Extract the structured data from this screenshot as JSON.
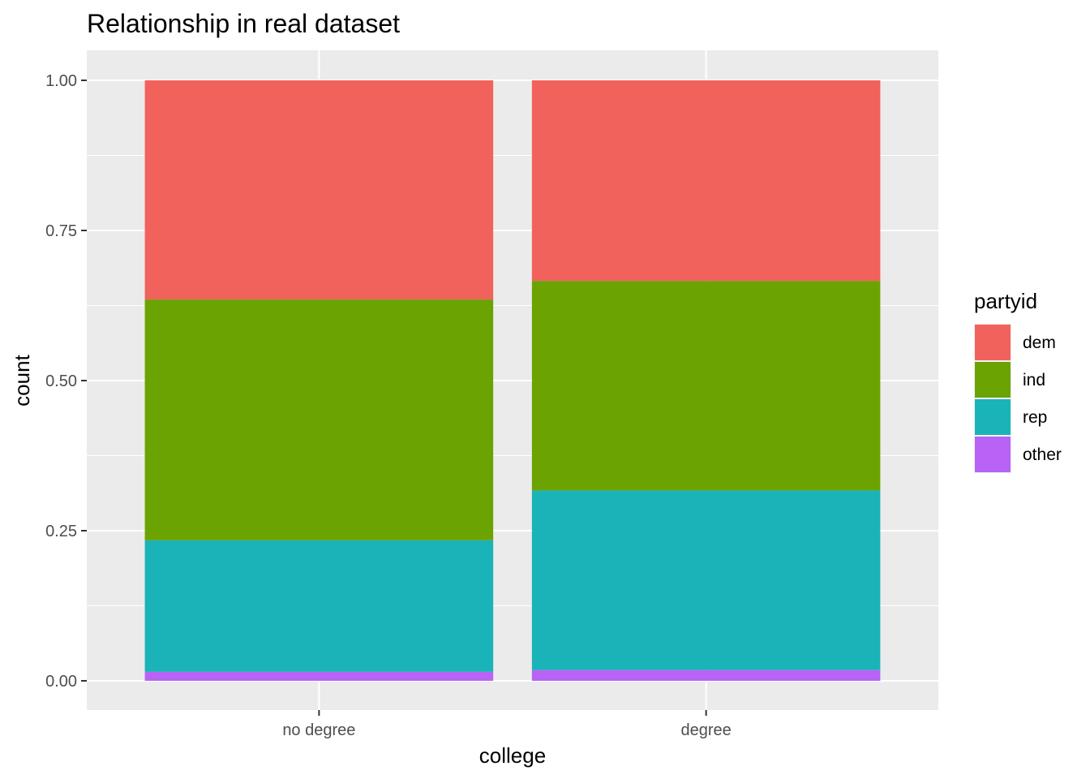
{
  "chart_data": {
    "type": "bar",
    "stacked": true,
    "title": "Relationship in real dataset",
    "xlabel": "college",
    "ylabel": "count",
    "categories": [
      "no degree",
      "degree"
    ],
    "ylim": [
      0,
      1
    ],
    "yticks": [
      "0.00",
      "0.25",
      "0.50",
      "0.75",
      "1.00"
    ],
    "grid": true,
    "legend": {
      "title": "partyid",
      "position": "right"
    },
    "series": [
      {
        "name": "other",
        "color": "#B863F5",
        "values": [
          0.015,
          0.018
        ]
      },
      {
        "name": "rep",
        "color": "#1AB3B8",
        "values": [
          0.219,
          0.299
        ]
      },
      {
        "name": "ind",
        "color": "#6BA303",
        "values": [
          0.401,
          0.349
        ]
      },
      {
        "name": "dem",
        "color": "#F2625C",
        "values": [
          0.365,
          0.334
        ]
      }
    ],
    "legend_order": [
      "dem",
      "ind",
      "rep",
      "other"
    ]
  }
}
